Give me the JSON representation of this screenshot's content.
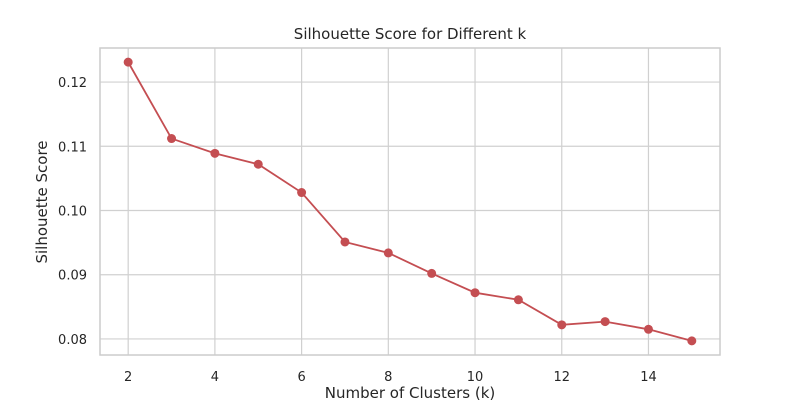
{
  "chart_data": {
    "type": "line",
    "title": "Silhouette Score for Different k",
    "xlabel": "Number of Clusters (k)",
    "ylabel": "Silhouette Score",
    "xlim": [
      1.35,
      15.65
    ],
    "ylim": [
      0.0775,
      0.1253
    ],
    "xticks": [
      2,
      4,
      6,
      8,
      10,
      12,
      14
    ],
    "yticks": [
      0.08,
      0.09,
      0.1,
      0.11,
      0.12
    ],
    "ytick_labels": [
      "0.08",
      "0.09",
      "0.10",
      "0.11",
      "0.12"
    ],
    "grid": true,
    "marker": "circle",
    "color": "#c44e52",
    "x": [
      2,
      3,
      4,
      5,
      6,
      7,
      8,
      9,
      10,
      11,
      12,
      13,
      14,
      15
    ],
    "y": [
      0.1231,
      0.1112,
      0.1089,
      0.1072,
      0.1028,
      0.0951,
      0.0934,
      0.0902,
      0.0872,
      0.0861,
      0.0822,
      0.0827,
      0.0815,
      0.0797
    ]
  }
}
